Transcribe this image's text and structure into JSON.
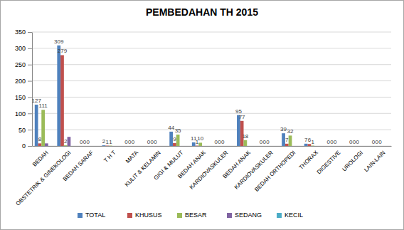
{
  "chart_data": {
    "type": "bar",
    "title": "PEMBEDAHAN TH 2015",
    "categories": [
      "BEDAH",
      "OBSTETRIK & GINEKOLOGI",
      "BEDAH SARAF",
      "T H T",
      "MATA",
      "KULIT & KELAMIN",
      "GIGI & MULUT",
      "BEDAH ANAK",
      "KARDIOVASKULER",
      "BEDAH ANAK",
      "KARDIOVASKULER",
      "BEDAH ORTHOPEDI",
      "THORAX",
      "DIGESTIVE",
      "UROLOGI",
      "LAIN-LAIN"
    ],
    "series": [
      {
        "name": "TOTAL",
        "color": "#4f81bd",
        "data_labels": true,
        "values": [
          127,
          309,
          0,
          2,
          0,
          0,
          44,
          11,
          0,
          95,
          0,
          39,
          7,
          0,
          0,
          0
        ]
      },
      {
        "name": "KHUSUS",
        "color": "#c0504d",
        "data_labels": true,
        "values": [
          8,
          279,
          0,
          1,
          0,
          0,
          9,
          1,
          0,
          77,
          0,
          7,
          6,
          0,
          0,
          0
        ]
      },
      {
        "name": "BESAR",
        "color": "#9bbb59",
        "data_labels": true,
        "values": [
          111,
          2,
          0,
          1,
          0,
          0,
          35,
          10,
          0,
          18,
          0,
          32,
          1,
          0,
          0,
          0
        ]
      },
      {
        "name": "SEDANG",
        "color": "#8064a2",
        "data_labels": false,
        "values": [
          8,
          28,
          0,
          0,
          0,
          0,
          0,
          0,
          0,
          0,
          0,
          0,
          0,
          0,
          0,
          0
        ]
      },
      {
        "name": "KECIL",
        "color": "#4bacc6",
        "data_labels": false,
        "values": [
          0,
          0,
          0,
          0,
          0,
          0,
          0,
          0,
          0,
          0,
          0,
          0,
          0,
          0,
          0,
          0
        ]
      }
    ],
    "ylim": [
      0,
      350
    ],
    "yticks": [
      0,
      50,
      100,
      150,
      200,
      250,
      300,
      350
    ],
    "grid": true,
    "legend": "bottom"
  }
}
